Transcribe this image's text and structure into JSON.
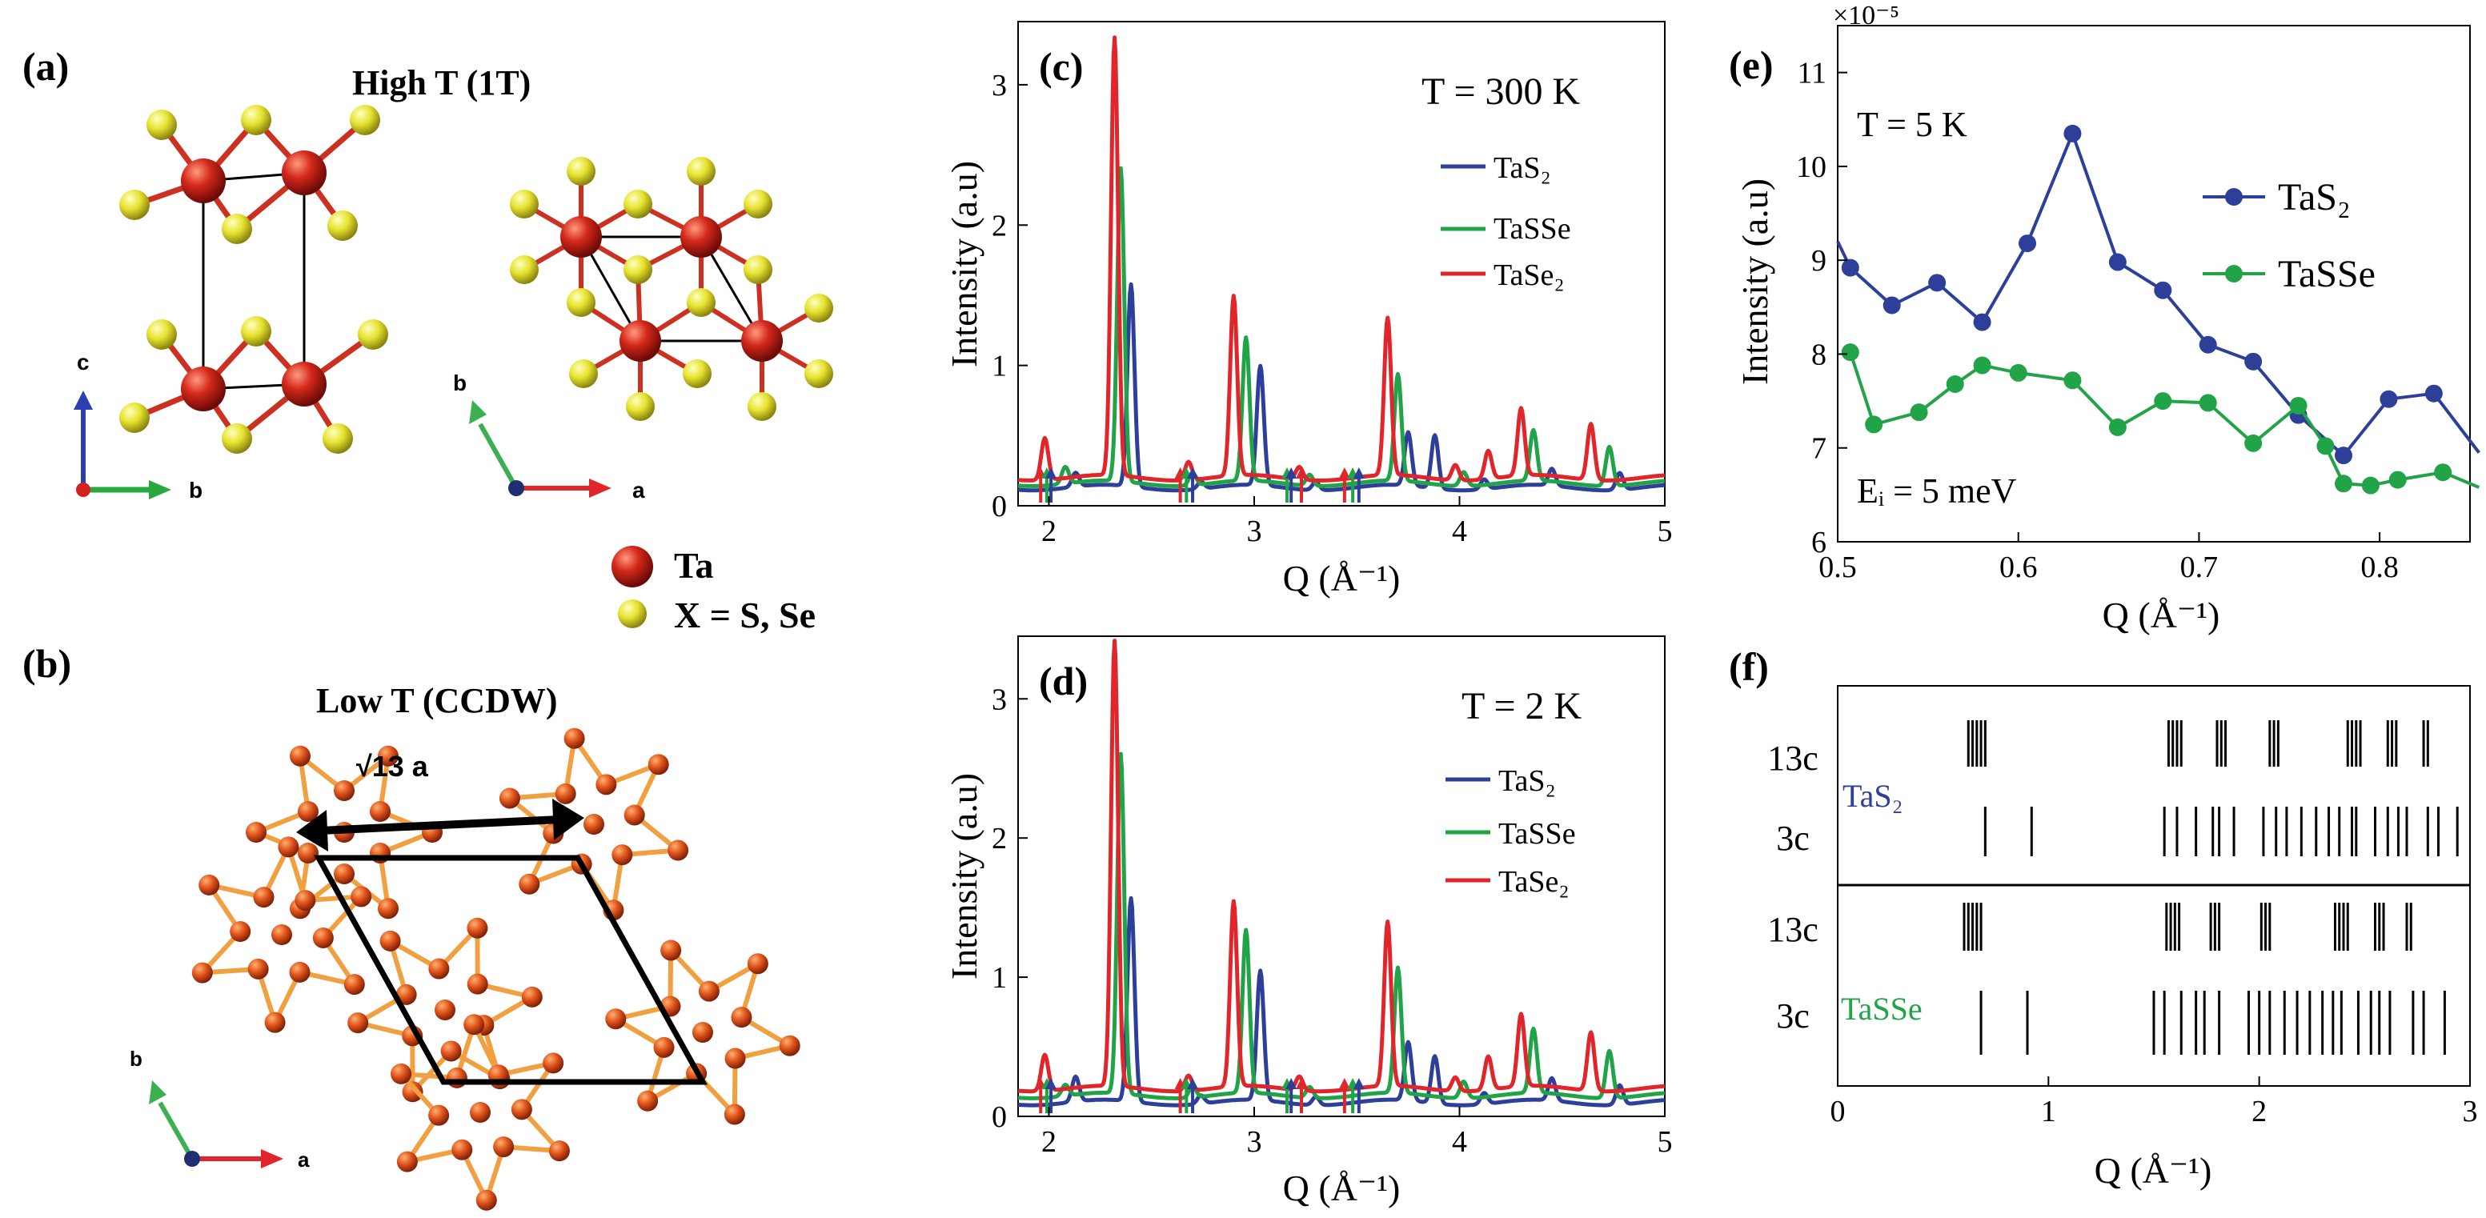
{
  "structure_panels": {
    "a": {
      "label": "(a)",
      "title": "High T (1T)",
      "axes": [
        "c",
        "b",
        "b",
        "a"
      ]
    },
    "legend": {
      "ta": "Ta",
      "x": "X = S, Se"
    },
    "b": {
      "label": "(b)",
      "title": "Low T (CCDW)",
      "dimension": "√13 a",
      "axes": [
        "b",
        "a"
      ]
    }
  },
  "colors": {
    "ta": "#c8281e",
    "x": "#e2de2a",
    "bond_x": "#d2c21e",
    "star": "#f0a040",
    "tas2": "#2e3f9a",
    "tasse": "#21a348",
    "tase2": "#e0262a"
  },
  "chart_data": [
    {
      "id": "c",
      "type": "line",
      "label": "(c)",
      "annotation": "T = 300 K",
      "xlabel": "Q (Å⁻¹)",
      "ylabel": "Intensity (a.u)",
      "xlim": [
        1.85,
        5.0
      ],
      "ylim": [
        0,
        3.45
      ],
      "xticks": [
        2,
        3,
        4,
        5
      ],
      "yticks": [
        0,
        1,
        2,
        3
      ],
      "legend": [
        "TaS₂",
        "TaSSe",
        "TaSe₂"
      ],
      "series": [
        {
          "name": "TaS₂",
          "color": "#2e3f9a",
          "baseline": 0.13,
          "peaks": [
            [
              2.13,
              0.1
            ],
            [
              2.4,
              1.44
            ],
            [
              2.74,
              0.05
            ],
            [
              3.03,
              0.85
            ],
            [
              3.3,
              0.06
            ],
            [
              3.75,
              0.38
            ],
            [
              3.88,
              0.38
            ],
            [
              4.12,
              0.07
            ],
            [
              4.45,
              0.12
            ],
            [
              4.78,
              0.12
            ]
          ]
        },
        {
          "name": "TaSSe",
          "color": "#21a348",
          "baseline": 0.16,
          "peaks": [
            [
              2.08,
              0.12
            ],
            [
              2.35,
              2.23
            ],
            [
              2.7,
              0.09
            ],
            [
              2.96,
              1.02
            ],
            [
              3.27,
              0.08
            ],
            [
              3.7,
              0.76
            ],
            [
              4.02,
              0.1
            ],
            [
              4.36,
              0.36
            ],
            [
              4.73,
              0.28
            ]
          ]
        },
        {
          "name": "TaSe₂",
          "color": "#e0262a",
          "baseline": 0.2,
          "peaks": [
            [
              1.98,
              0.3
            ],
            [
              2.32,
              3.12
            ],
            [
              2.68,
              0.13
            ],
            [
              2.9,
              1.28
            ],
            [
              3.22,
              0.09
            ],
            [
              3.65,
              1.12
            ],
            [
              3.98,
              0.11
            ],
            [
              4.14,
              0.2
            ],
            [
              4.3,
              0.48
            ],
            [
              4.64,
              0.4
            ]
          ]
        }
      ],
      "arrows": [
        {
          "color": "#e0262a",
          "x": [
            1.96,
            2.64,
            3.23,
            3.44
          ]
        },
        {
          "color": "#21a348",
          "x": [
            1.99,
            2.67,
            3.16,
            3.48
          ]
        },
        {
          "color": "#2e3f9a",
          "x": [
            2.01,
            2.7,
            3.18,
            3.51
          ]
        }
      ]
    },
    {
      "id": "d",
      "type": "line",
      "label": "(d)",
      "annotation": "T = 2 K",
      "xlabel": "Q (Å⁻¹)",
      "ylabel": "Intensity (a.u)",
      "xlim": [
        1.85,
        5.0
      ],
      "ylim": [
        0,
        3.45
      ],
      "xticks": [
        2,
        3,
        4,
        5
      ],
      "yticks": [
        0,
        1,
        2,
        3
      ],
      "legend": [
        "TaS₂",
        "TaSSe",
        "TaSe₂"
      ],
      "series": [
        {
          "name": "TaS₂",
          "color": "#2e3f9a",
          "baseline": 0.1,
          "peaks": [
            [
              2.13,
              0.18
            ],
            [
              2.4,
              1.46
            ],
            [
              2.74,
              0.06
            ],
            [
              3.03,
              0.93
            ],
            [
              3.3,
              0.06
            ],
            [
              3.75,
              0.42
            ],
            [
              3.88,
              0.34
            ],
            [
              4.12,
              0.08
            ],
            [
              4.45,
              0.16
            ],
            [
              4.78,
              0.14
            ]
          ]
        },
        {
          "name": "TaSSe",
          "color": "#21a348",
          "baseline": 0.15,
          "peaks": [
            [
              2.08,
              0.08
            ],
            [
              2.35,
              2.44
            ],
            [
              2.7,
              0.08
            ],
            [
              2.96,
              1.17
            ],
            [
              3.27,
              0.08
            ],
            [
              3.7,
              0.9
            ],
            [
              4.02,
              0.12
            ],
            [
              4.36,
              0.46
            ],
            [
              4.73,
              0.34
            ]
          ]
        },
        {
          "name": "TaSe₂",
          "color": "#e0262a",
          "baseline": 0.2,
          "peaks": [
            [
              1.98,
              0.26
            ],
            [
              2.32,
              3.2
            ],
            [
              2.68,
              0.11
            ],
            [
              2.9,
              1.33
            ],
            [
              3.22,
              0.1
            ],
            [
              3.65,
              1.18
            ],
            [
              3.98,
              0.1
            ],
            [
              4.14,
              0.24
            ],
            [
              4.3,
              0.52
            ],
            [
              4.64,
              0.42
            ]
          ]
        }
      ],
      "arrows": [
        {
          "color": "#e0262a",
          "x": [
            1.96,
            2.64,
            3.23,
            3.44
          ]
        },
        {
          "color": "#21a348",
          "x": [
            1.99,
            2.67,
            3.16,
            3.48
          ]
        },
        {
          "color": "#2e3f9a",
          "x": [
            2.01,
            2.7,
            3.18,
            3.51
          ]
        }
      ]
    },
    {
      "id": "e",
      "type": "line",
      "label": "(e)",
      "annotation": "T = 5 K",
      "annotation2": "Eᵢ = 5 meV",
      "exponent": "×10⁻⁵",
      "xlabel": "Q (Å⁻¹)",
      "ylabel": "Intensity (a.u)",
      "xlim": [
        0.5,
        0.85
      ],
      "ylim": [
        6,
        11.5
      ],
      "xticks": [
        0.5,
        0.6,
        0.7,
        0.8
      ],
      "yticks": [
        6,
        7,
        8,
        9,
        10,
        11
      ],
      "legend": [
        "TaS₂",
        "TaSSe"
      ],
      "series": [
        {
          "name": "TaS₂",
          "color": "#2e3f9a",
          "x": [
            0.5,
            0.507,
            0.53,
            0.555,
            0.58,
            0.605,
            0.63,
            0.655,
            0.68,
            0.705,
            0.73,
            0.755,
            0.78,
            0.805,
            0.83,
            0.855
          ],
          "y": [
            9.2,
            8.92,
            8.52,
            8.76,
            8.34,
            9.18,
            10.35,
            8.98,
            8.68,
            8.1,
            7.92,
            7.35,
            6.92,
            7.52,
            7.58,
            6.95
          ]
        },
        {
          "name": "TaSSe",
          "color": "#21a348",
          "x": [
            0.507,
            0.52,
            0.545,
            0.565,
            0.58,
            0.6,
            0.63,
            0.655,
            0.68,
            0.705,
            0.73,
            0.755,
            0.77,
            0.78,
            0.795,
            0.81,
            0.835,
            0.855
          ],
          "y": [
            8.02,
            7.25,
            7.38,
            7.68,
            7.88,
            7.8,
            7.72,
            7.22,
            7.5,
            7.48,
            7.05,
            7.45,
            7.02,
            6.62,
            6.6,
            6.66,
            6.74,
            6.58
          ]
        }
      ]
    },
    {
      "id": "f",
      "type": "scatter",
      "label": "(f)",
      "xlabel": "Q (Å⁻¹)",
      "xlim": [
        0,
        3
      ],
      "xticks": [
        0,
        1,
        2,
        3
      ],
      "rows": [
        "13c",
        "3c",
        "13c",
        "3c"
      ],
      "groups": [
        {
          "name": "TaS₂",
          "color": "#2e3f9a"
        },
        {
          "name": "TaSSe",
          "color": "#21a348"
        }
      ],
      "ticks": {
        "TaS2_13c": [
          0.62,
          0.64,
          0.66,
          0.68,
          0.7,
          1.57,
          1.59,
          1.61,
          1.63,
          1.8,
          1.82,
          1.84,
          2.05,
          2.07,
          2.09,
          2.42,
          2.44,
          2.46,
          2.48,
          2.61,
          2.63,
          2.65,
          2.78,
          2.8
        ],
        "TaS2_3c": [
          0.7,
          0.92,
          1.55,
          1.61,
          1.7,
          1.78,
          1.81,
          1.88,
          2.02,
          2.08,
          2.13,
          2.2,
          2.27,
          2.33,
          2.38,
          2.44,
          2.46,
          2.55,
          2.61,
          2.66,
          2.7,
          2.8,
          2.85,
          2.94
        ],
        "TaSSe_13c": [
          0.6,
          0.62,
          0.64,
          0.66,
          0.68,
          1.56,
          1.58,
          1.6,
          1.62,
          1.77,
          1.79,
          1.81,
          2.01,
          2.03,
          2.05,
          2.36,
          2.38,
          2.4,
          2.42,
          2.55,
          2.57,
          2.59,
          2.7,
          2.72
        ],
        "TaSSe_3c": [
          0.68,
          0.9,
          1.5,
          1.55,
          1.63,
          1.7,
          1.74,
          1.81,
          1.95,
          2.0,
          2.05,
          2.12,
          2.18,
          2.24,
          2.3,
          2.35,
          2.39,
          2.47,
          2.53,
          2.57,
          2.62,
          2.73,
          2.78,
          2.88
        ]
      }
    }
  ]
}
